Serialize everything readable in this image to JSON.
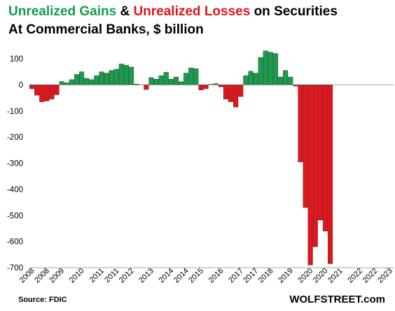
{
  "header": {
    "title_gains": "Unrealized Gains",
    "title_amp": " & ",
    "title_losses": "Unrealized Losses",
    "title_rest": " on Securities",
    "subtitle": "At Commercial  Banks, $ billion"
  },
  "footer": {
    "source": "Source: FDIC",
    "brand": "WOLFSTREET.com"
  },
  "colors": {
    "gain": "#1a9b4d",
    "loss": "#e3141b",
    "gain_title": "#169b4b",
    "loss_title": "#e0141b",
    "axis": "#000000"
  },
  "chart_data": {
    "type": "bar",
    "title": "Unrealized Gains & Unrealized Losses on Securities",
    "subtitle": "At Commercial  Banks, $ billion",
    "ylim": [
      -700,
      100
    ],
    "yticks": [
      100,
      0,
      -100,
      -200,
      -300,
      -400,
      -500,
      -600,
      -700
    ],
    "grid": false,
    "x_tick_labels": [
      "2008",
      "2008",
      "2009",
      "2010",
      "2011",
      "2011",
      "2012",
      "2013",
      "2014",
      "2014",
      "2015",
      "2016",
      "2017",
      "2017",
      "2018",
      "2019",
      "2020",
      "2020",
      "2021",
      "2022",
      "2022",
      "2023"
    ],
    "x_tick_positions_q": [
      0,
      3,
      6,
      10,
      14,
      17,
      20,
      24,
      28,
      31,
      34,
      38,
      42,
      45,
      48,
      52,
      56,
      59,
      62,
      66,
      69,
      72
    ],
    "first_quarter": "2008 Q1",
    "series": [
      {
        "values": [
          -15,
          -40,
          -65,
          -62,
          -55,
          -38,
          13,
          8,
          20,
          40,
          50,
          25,
          20,
          35,
          50,
          45,
          55,
          60,
          80,
          75,
          68,
          3,
          0,
          -18,
          28,
          22,
          35,
          48,
          22,
          30,
          12,
          45,
          65,
          62,
          -20,
          -15,
          2,
          5,
          -8,
          -55,
          -65,
          -85,
          -45,
          35,
          52,
          45,
          105,
          130,
          125,
          120,
          30,
          55,
          30,
          -5,
          -295,
          -470,
          -690,
          -620,
          -518,
          -560,
          -685
        ]
      }
    ]
  }
}
